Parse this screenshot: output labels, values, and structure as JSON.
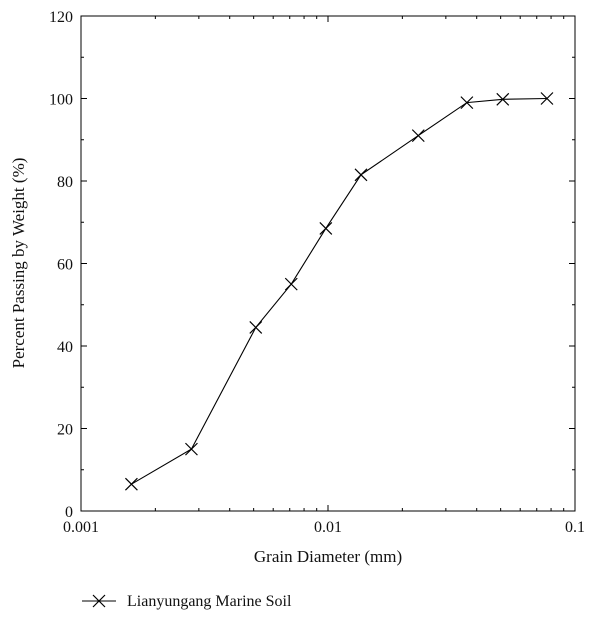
{
  "colors": {
    "line": "#000000",
    "axis": "#000000",
    "background": "#ffffff"
  },
  "chart_data": {
    "type": "line",
    "title": "",
    "xlabel": "Grain Diameter (mm)",
    "ylabel": "Percent Passing by Weight (%)",
    "xscale": "log",
    "xlim": [
      0.001,
      0.1
    ],
    "ylim": [
      0,
      120
    ],
    "xticks": [
      0.001,
      0.01,
      0.1
    ],
    "xtick_labels": [
      "0.001",
      "0.01",
      "0.1"
    ],
    "yticks": [
      0,
      20,
      40,
      60,
      80,
      100,
      120
    ],
    "ytick_labels": [
      "0",
      "20",
      "40",
      "60",
      "80",
      "100",
      "120"
    ],
    "grid": false,
    "legend_position": "bottom-left, below plot",
    "series": [
      {
        "name": "Lianyungang Marine Soil",
        "marker": "x",
        "x": [
          0.0016,
          0.0028,
          0.0051,
          0.0071,
          0.0098,
          0.0136,
          0.0232,
          0.0365,
          0.051,
          0.077
        ],
        "y": [
          6.5,
          15,
          44.5,
          55,
          68.5,
          81.5,
          91,
          99,
          99.8,
          100
        ]
      }
    ]
  }
}
